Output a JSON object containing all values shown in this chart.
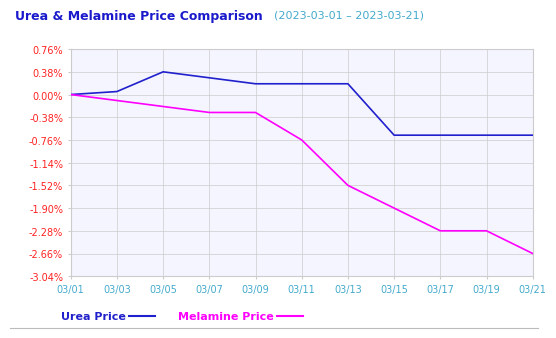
{
  "title": "Urea & Melamine Price Comparison",
  "subtitle": "(2023-03-01 – 2023-03-21)",
  "x_labels": [
    "03/01",
    "03/03",
    "03/05",
    "03/07",
    "03/09",
    "03/11",
    "03/13",
    "03/15",
    "03/17",
    "03/19",
    "03/21"
  ],
  "urea_x": [
    0,
    1,
    2,
    3,
    4,
    5,
    6,
    7,
    8,
    9,
    10
  ],
  "urea_y": [
    0.0,
    0.05,
    0.38,
    0.28,
    0.18,
    0.18,
    0.18,
    -0.68,
    -0.68,
    -0.68,
    -0.68
  ],
  "melamine_x": [
    0,
    1,
    2,
    3,
    4,
    5,
    6,
    7,
    8,
    9,
    10
  ],
  "melamine_y": [
    0.0,
    -0.1,
    -0.2,
    -0.3,
    -0.3,
    -0.76,
    -1.52,
    -1.9,
    -2.28,
    -2.28,
    -2.66
  ],
  "urea_color": "#2020cc",
  "melamine_color": "#ff00ff",
  "title_color": "#1a1acc",
  "subtitle_color": "#44aacc",
  "ylabel_color": "#ff2222",
  "xlabel_color": "#44aacc",
  "grid_color": "#cccccc",
  "bg_color": "#ffffff",
  "plot_bg_color": "#f5f5ff",
  "ylim_min": -3.04,
  "ylim_max": 0.76,
  "yticks": [
    0.76,
    0.38,
    0,
    -0.38,
    -0.76,
    -1.14,
    -1.52,
    -1.9,
    -2.28,
    -2.66,
    -3.04
  ],
  "legend_urea": "Urea Price",
  "legend_melamine": "Melamine Price",
  "legend_urea_color": "#2020cc",
  "legend_melamine_color": "#ff00ff"
}
